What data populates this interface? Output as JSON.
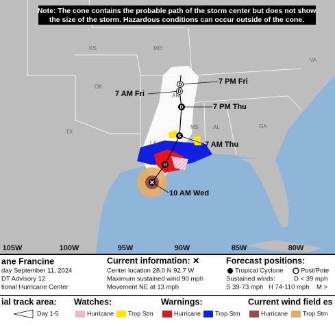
{
  "note": [
    "Note: The cone contains the probable path of the storm center but does not show",
    "the size of the storm. Hazardous conditions can occur outside of the cone."
  ],
  "states": [
    "KS",
    "MO",
    "VA",
    "OK",
    "AR",
    "TX",
    "MS",
    "AL",
    "GA",
    "LA"
  ],
  "forecast_points": [
    {
      "time": "7 PM Fri",
      "letter": "D"
    },
    {
      "time": "7 AM Fri",
      "letter": "D"
    },
    {
      "time": "7 PM Thu",
      "letter": "D"
    },
    {
      "time": "7 AM Thu",
      "letter": "S"
    },
    {
      "time": "10 AM Wed",
      "letter": "H"
    }
  ],
  "longitudes": [
    "105W",
    "100W",
    "95W",
    "90W",
    "85W",
    "80W"
  ],
  "storm": {
    "name": "ane Francine",
    "date": "day September 11, 2024",
    "advisory": "DT Advisory 12",
    "center": "tional Hurricane Center"
  },
  "current": {
    "title": "Current information: ✕",
    "location": "Center location 28.0 N 92.7 W",
    "wind": "Maximum sustained wind 90 mph",
    "movement": "Movement NE at 13 mph"
  },
  "forecast": {
    "title": "Forecast positions:",
    "tc": "Tropical Cyclone",
    "post": "Post/Pote",
    "winds": "Sustained winds:",
    "d": "D < 39 mph",
    "s": "S 39-73 mph",
    "h": "H 74-110 mph",
    "m": "M >"
  },
  "legend": {
    "track": "ial track area:",
    "day": "Day 1-5",
    "watches": "Watches:",
    "watch_h": "Hurricane",
    "watch_t": "Trop Stm",
    "warnings": "Warnings:",
    "warn_h": "Hurricane",
    "warn_t": "Trop Stm",
    "wind": "Current wind field es",
    "wind_h": "Hurricane",
    "wind_t": "Trop Stm"
  }
}
